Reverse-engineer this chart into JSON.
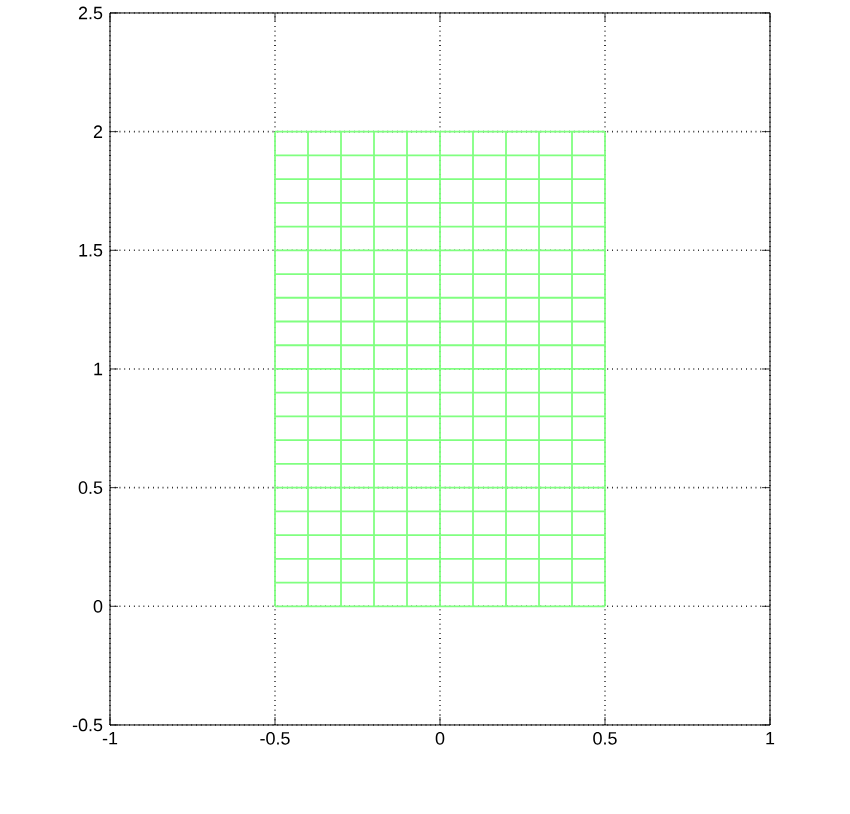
{
  "chart_data": {
    "type": "line",
    "xlim": [
      -1,
      1
    ],
    "ylim": [
      -0.5,
      2.5
    ],
    "xticks": [
      -1,
      -0.5,
      0,
      0.5,
      1
    ],
    "yticks": [
      -0.5,
      0,
      0.5,
      1,
      1.5,
      2,
      2.5
    ],
    "grid": true,
    "marker": "none",
    "line_style": "solid",
    "series": [
      {
        "color": "#80ff80",
        "x": [
          -0.5,
          0.5
        ],
        "values": [
          0,
          0
        ]
      },
      {
        "color": "#80ff80",
        "x": [
          -0.5,
          0.5
        ],
        "values": [
          0.1,
          0.1
        ]
      },
      {
        "color": "#80ff80",
        "x": [
          -0.5,
          0.5
        ],
        "values": [
          0.2,
          0.2
        ]
      },
      {
        "color": "#80ff80",
        "x": [
          -0.5,
          0.5
        ],
        "values": [
          0.3,
          0.3
        ]
      },
      {
        "color": "#80ff80",
        "x": [
          -0.5,
          0.5
        ],
        "values": [
          0.4,
          0.4
        ]
      },
      {
        "color": "#80ff80",
        "x": [
          -0.5,
          0.5
        ],
        "values": [
          0.5,
          0.5
        ]
      },
      {
        "color": "#80ff80",
        "x": [
          -0.5,
          0.5
        ],
        "values": [
          0.6,
          0.6
        ]
      },
      {
        "color": "#80ff80",
        "x": [
          -0.5,
          0.5
        ],
        "values": [
          0.7,
          0.7
        ]
      },
      {
        "color": "#80ff80",
        "x": [
          -0.5,
          0.5
        ],
        "values": [
          0.8,
          0.8
        ]
      },
      {
        "color": "#80ff80",
        "x": [
          -0.5,
          0.5
        ],
        "values": [
          0.9,
          0.9
        ]
      },
      {
        "color": "#80ff80",
        "x": [
          -0.5,
          0.5
        ],
        "values": [
          1,
          1
        ]
      },
      {
        "color": "#80ff80",
        "x": [
          -0.5,
          0.5
        ],
        "values": [
          1.1,
          1.1
        ]
      },
      {
        "color": "#80ff80",
        "x": [
          -0.5,
          0.5
        ],
        "values": [
          1.2,
          1.2
        ]
      },
      {
        "color": "#80ff80",
        "x": [
          -0.5,
          0.5
        ],
        "values": [
          1.3,
          1.3
        ]
      },
      {
        "color": "#80ff80",
        "x": [
          -0.5,
          0.5
        ],
        "values": [
          1.4,
          1.4
        ]
      },
      {
        "color": "#80ff80",
        "x": [
          -0.5,
          0.5
        ],
        "values": [
          1.5,
          1.5
        ]
      },
      {
        "color": "#80ff80",
        "x": [
          -0.5,
          0.5
        ],
        "values": [
          1.6,
          1.6
        ]
      },
      {
        "color": "#80ff80",
        "x": [
          -0.5,
          0.5
        ],
        "values": [
          1.7,
          1.7
        ]
      },
      {
        "color": "#80ff80",
        "x": [
          -0.5,
          0.5
        ],
        "values": [
          1.8,
          1.8
        ]
      },
      {
        "color": "#80ff80",
        "x": [
          -0.5,
          0.5
        ],
        "values": [
          1.9,
          1.9
        ]
      },
      {
        "color": "#80ff80",
        "x": [
          -0.5,
          0.5
        ],
        "values": [
          2,
          2
        ]
      },
      {
        "color": "#80ff80",
        "x": [
          -0.5,
          -0.5
        ],
        "values": [
          0,
          2
        ]
      },
      {
        "color": "#80ff80",
        "x": [
          -0.4,
          -0.4
        ],
        "values": [
          0,
          2
        ]
      },
      {
        "color": "#80ff80",
        "x": [
          -0.3,
          -0.3
        ],
        "values": [
          0,
          2
        ]
      },
      {
        "color": "#80ff80",
        "x": [
          -0.2,
          -0.2
        ],
        "values": [
          0,
          2
        ]
      },
      {
        "color": "#80ff80",
        "x": [
          -0.1,
          -0.1
        ],
        "values": [
          0,
          2
        ]
      },
      {
        "color": "#80ff80",
        "x": [
          0,
          0
        ],
        "values": [
          0,
          2
        ]
      },
      {
        "color": "#80ff80",
        "x": [
          0.1,
          0.1
        ],
        "values": [
          0,
          2
        ]
      },
      {
        "color": "#80ff80",
        "x": [
          0.2,
          0.2
        ],
        "values": [
          0,
          2
        ]
      },
      {
        "color": "#80ff80",
        "x": [
          0.3,
          0.3
        ],
        "values": [
          0,
          2
        ]
      },
      {
        "color": "#80ff80",
        "x": [
          0.4,
          0.4
        ],
        "values": [
          0,
          2
        ]
      },
      {
        "color": "#80ff80",
        "x": [
          0.5,
          0.5
        ],
        "values": [
          0,
          2
        ]
      }
    ]
  }
}
